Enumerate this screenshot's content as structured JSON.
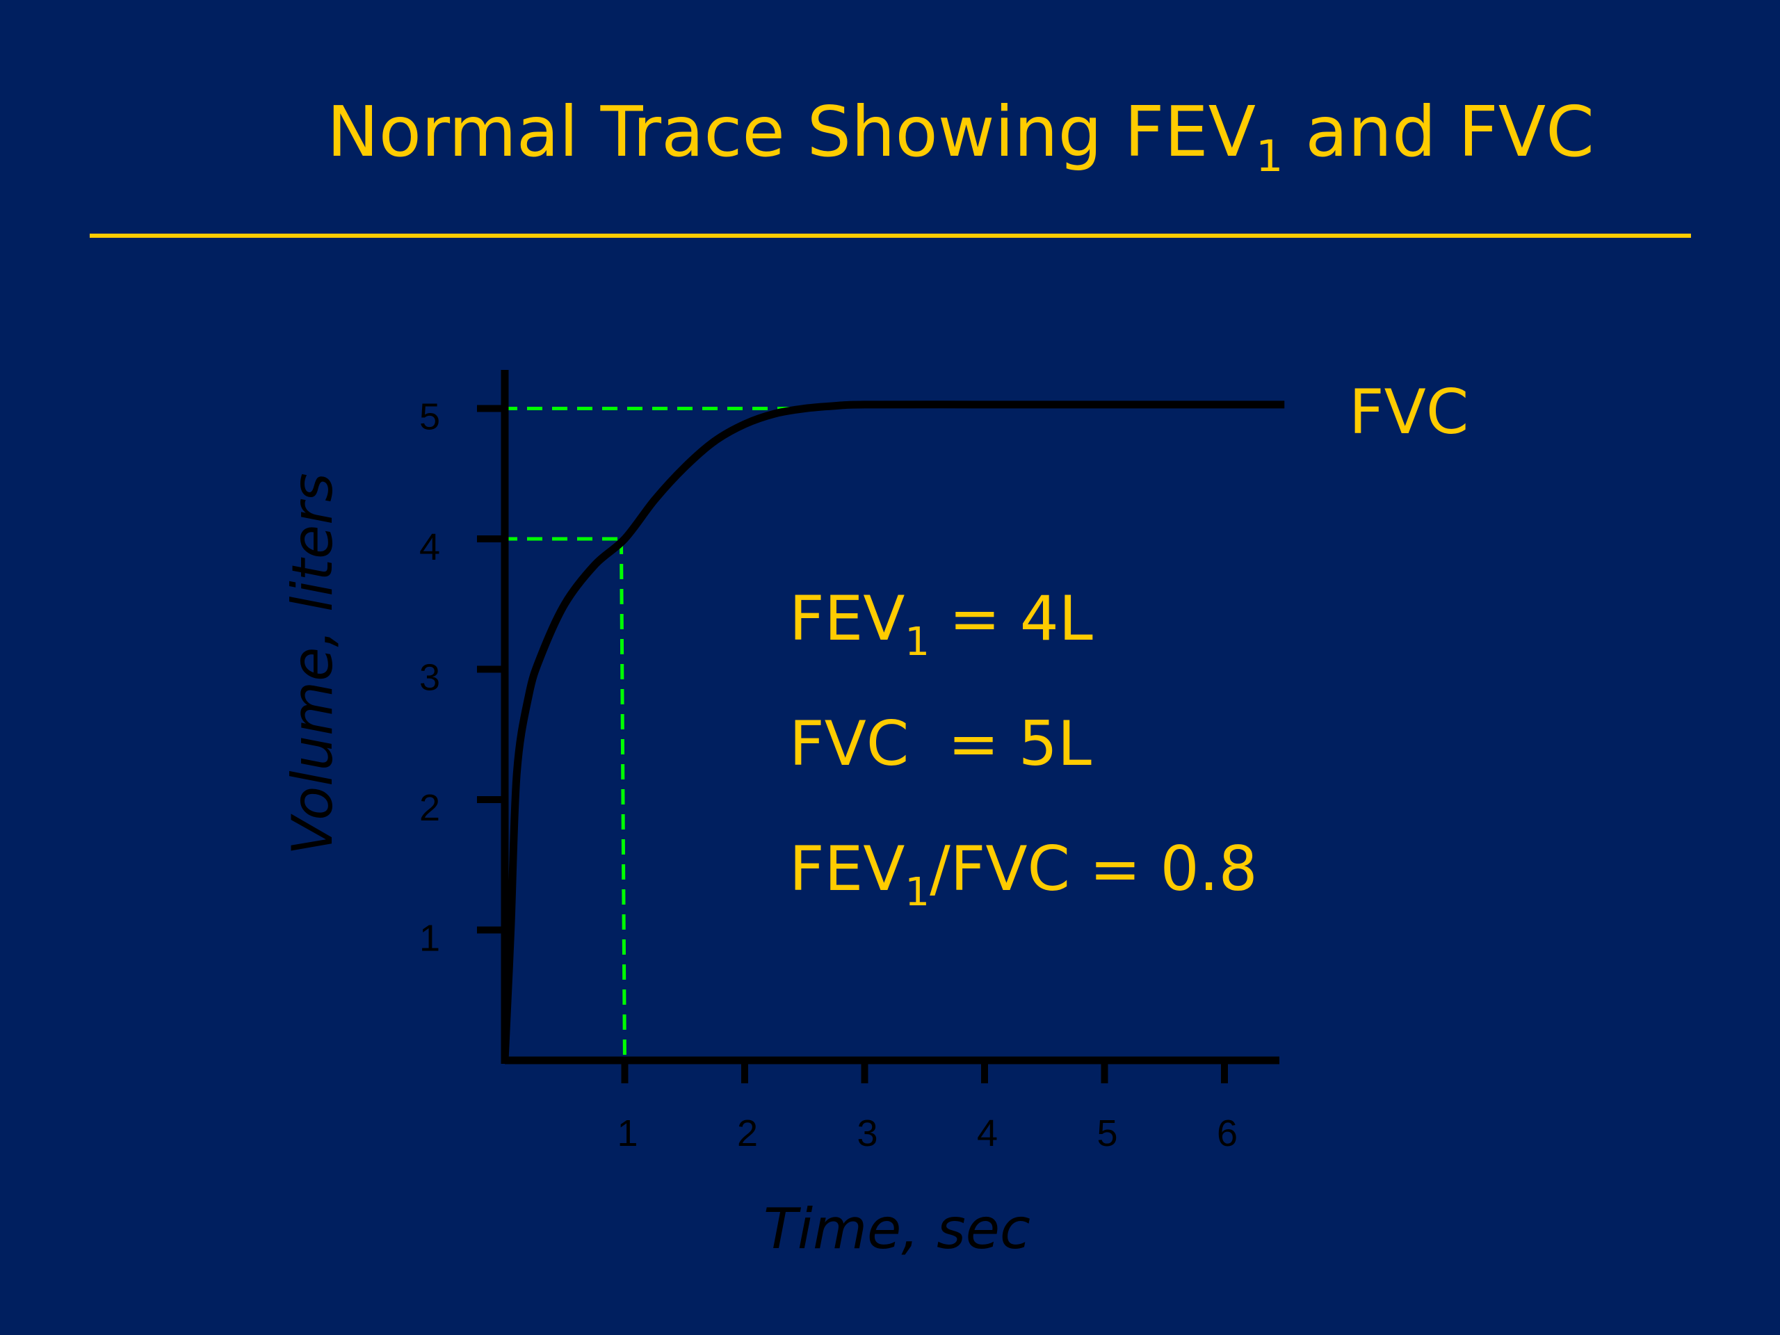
{
  "slide": {
    "title_main": "Normal Trace Showing FEV",
    "title_sub": "1",
    "title_tail": " and FVC",
    "background_color": "#001f5f",
    "accent_color": "#ffcc00",
    "guide_color": "#00ff00"
  },
  "chart_data": {
    "type": "line",
    "xlabel": "Time, sec",
    "ylabel": "Volume, liters",
    "xlim": [
      0,
      6.5
    ],
    "ylim": [
      0,
      5.2
    ],
    "x_ticks": [
      1,
      2,
      3,
      4,
      5,
      6
    ],
    "y_ticks": [
      1,
      2,
      3,
      4,
      5
    ],
    "grid": false,
    "series": [
      {
        "x": [
          0,
          0.05,
          0.1,
          0.2,
          0.3,
          0.5,
          0.75,
          1.0,
          1.25,
          1.5,
          1.75,
          2.0,
          2.25,
          2.5,
          2.75,
          3.0,
          4.0,
          5.0,
          6.5
        ],
        "y": [
          0,
          1.0,
          2.2,
          2.8,
          3.1,
          3.5,
          3.8,
          4.0,
          4.3,
          4.55,
          4.75,
          4.88,
          4.96,
          5.0,
          5.02,
          5.03,
          5.03,
          5.03,
          5.03
        ]
      }
    ],
    "guides": {
      "fev1": {
        "x": 1,
        "y": 4
      },
      "fvc": {
        "y": 5,
        "x_end": 2.5
      }
    },
    "annotations": {
      "curve_label": "FVC",
      "fev1_prefix": "FEV",
      "fev1_sub": "1",
      "fev1_value": " = 4L",
      "fvc_line": "FVC  = 5L",
      "ratio_prefix": "FEV",
      "ratio_sub": "1",
      "ratio_value": "/FVC = 0.8"
    }
  }
}
